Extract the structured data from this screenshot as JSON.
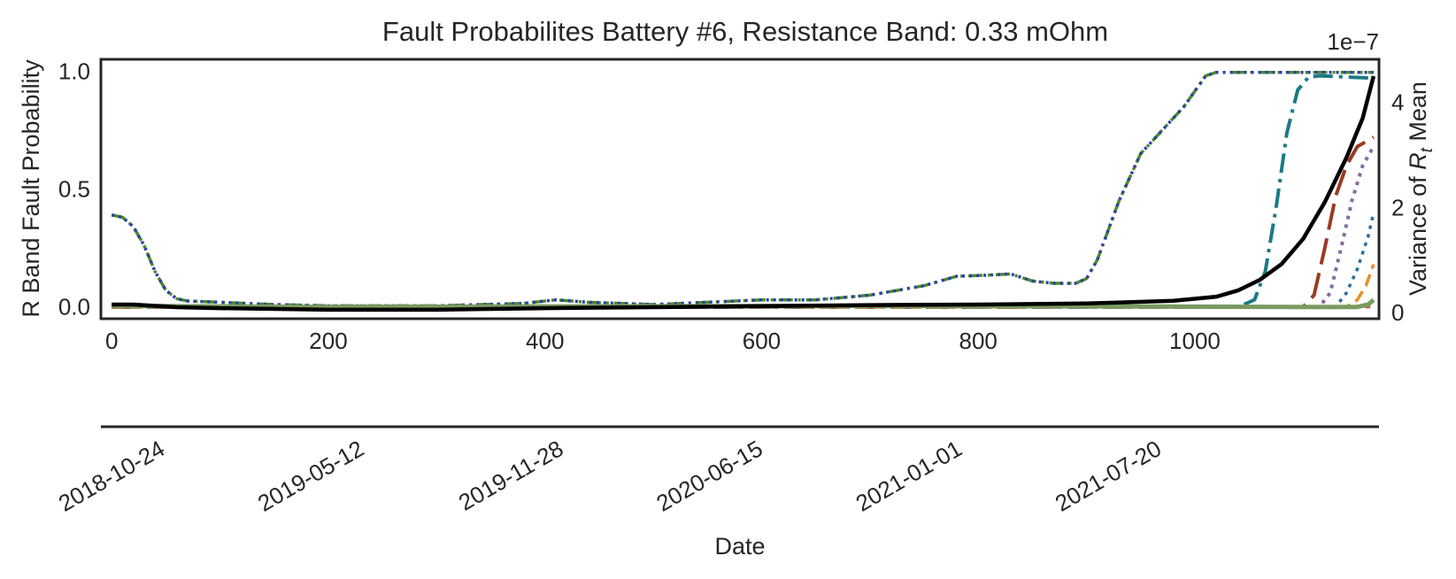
{
  "chart_data": {
    "type": "line",
    "title": "Fault Probabilites Battery #6, Resistance Band: 0.33 mOhm",
    "xlabel": "",
    "ylabel": "R Band Fault Probability",
    "y2label_prefix": "Variance of ",
    "y2label_symbol": "R",
    "y2label_subscript": "t",
    "y2label_suffix": " Mean",
    "y2_offset_text": "1e−7",
    "date_axis_label": "Date",
    "xlim": [
      -10,
      1170
    ],
    "ylim": [
      -0.05,
      1.05
    ],
    "y2lim": [
      -0.12,
      4.82
    ],
    "x_ticks": [
      0,
      200,
      400,
      600,
      800,
      1000
    ],
    "x_tick_labels": [
      "0",
      "200",
      "400",
      "600",
      "800",
      "1000"
    ],
    "y_ticks": [
      0.0,
      0.5,
      1.0
    ],
    "y_tick_labels": [
      "0.0",
      "0.5",
      "1.0"
    ],
    "y2_ticks": [
      0,
      2,
      4
    ],
    "y2_tick_labels": [
      "0",
      "2",
      "4"
    ],
    "date_ticks": [
      "2018-10-24",
      "2019-05-12",
      "2019-11-28",
      "2020-06-15",
      "2021-01-01",
      "2021-07-20"
    ],
    "grid": false,
    "legend": "none",
    "series": [
      {
        "color": "#4a8a2a",
        "dash": "16,6,3,6",
        "width": 3.5,
        "axis": "left",
        "points": [
          [
            0,
            0.39
          ],
          [
            10,
            0.38
          ],
          [
            20,
            0.34
          ],
          [
            30,
            0.26
          ],
          [
            40,
            0.15
          ],
          [
            50,
            0.07
          ],
          [
            60,
            0.035
          ],
          [
            70,
            0.025
          ],
          [
            100,
            0.02
          ],
          [
            150,
            0.01
          ],
          [
            200,
            0.005
          ],
          [
            300,
            0.005
          ],
          [
            380,
            0.015
          ],
          [
            410,
            0.03
          ],
          [
            440,
            0.02
          ],
          [
            500,
            0.01
          ],
          [
            550,
            0.02
          ],
          [
            600,
            0.03
          ],
          [
            650,
            0.03
          ],
          [
            700,
            0.05
          ],
          [
            750,
            0.09
          ],
          [
            780,
            0.13
          ],
          [
            810,
            0.135
          ],
          [
            830,
            0.14
          ],
          [
            850,
            0.11
          ],
          [
            870,
            0.1
          ],
          [
            890,
            0.1
          ],
          [
            900,
            0.12
          ],
          [
            910,
            0.2
          ],
          [
            930,
            0.45
          ],
          [
            950,
            0.65
          ],
          [
            970,
            0.75
          ],
          [
            990,
            0.85
          ],
          [
            1010,
            0.98
          ],
          [
            1020,
            0.995
          ],
          [
            1165,
            0.995
          ]
        ]
      },
      {
        "color": "#2c3ea8",
        "dash": "3,5",
        "width": 3.5,
        "axis": "left",
        "points": [
          [
            0,
            0.39
          ],
          [
            10,
            0.38
          ],
          [
            20,
            0.34
          ],
          [
            30,
            0.26
          ],
          [
            40,
            0.15
          ],
          [
            50,
            0.07
          ],
          [
            60,
            0.035
          ],
          [
            70,
            0.025
          ],
          [
            100,
            0.02
          ],
          [
            150,
            0.01
          ],
          [
            200,
            0.005
          ],
          [
            300,
            0.005
          ],
          [
            380,
            0.015
          ],
          [
            410,
            0.03
          ],
          [
            440,
            0.02
          ],
          [
            500,
            0.01
          ],
          [
            550,
            0.02
          ],
          [
            600,
            0.03
          ],
          [
            650,
            0.03
          ],
          [
            700,
            0.05
          ],
          [
            750,
            0.09
          ],
          [
            780,
            0.13
          ],
          [
            810,
            0.135
          ],
          [
            830,
            0.14
          ],
          [
            850,
            0.11
          ],
          [
            870,
            0.1
          ],
          [
            890,
            0.1
          ],
          [
            900,
            0.12
          ],
          [
            910,
            0.2
          ],
          [
            930,
            0.45
          ],
          [
            950,
            0.65
          ],
          [
            970,
            0.75
          ],
          [
            990,
            0.85
          ],
          [
            1010,
            0.98
          ],
          [
            1020,
            0.995
          ],
          [
            1165,
            0.995
          ]
        ]
      },
      {
        "color": "#1a7a86",
        "dash": "22,7,4,7",
        "width": 4,
        "axis": "left",
        "points": [
          [
            0,
            0.0
          ],
          [
            1040,
            0.0
          ],
          [
            1055,
            0.03
          ],
          [
            1065,
            0.15
          ],
          [
            1075,
            0.42
          ],
          [
            1085,
            0.74
          ],
          [
            1095,
            0.92
          ],
          [
            1105,
            0.975
          ],
          [
            1115,
            0.98
          ],
          [
            1140,
            0.975
          ],
          [
            1165,
            0.97
          ]
        ]
      },
      {
        "color": "#9a3a22",
        "dash": "30,10",
        "width": 4,
        "axis": "left",
        "points": [
          [
            0,
            0.0
          ],
          [
            1100,
            0.0
          ],
          [
            1110,
            0.05
          ],
          [
            1120,
            0.25
          ],
          [
            1130,
            0.47
          ],
          [
            1140,
            0.6
          ],
          [
            1150,
            0.68
          ],
          [
            1165,
            0.72
          ]
        ]
      },
      {
        "color": "#8a6aa0",
        "dash": "4,6",
        "width": 4,
        "axis": "left",
        "points": [
          [
            0,
            0.0
          ],
          [
            1115,
            0.0
          ],
          [
            1125,
            0.06
          ],
          [
            1135,
            0.25
          ],
          [
            1145,
            0.45
          ],
          [
            1155,
            0.6
          ],
          [
            1165,
            0.68
          ]
        ]
      },
      {
        "color": "#2a6ea0",
        "dash": "4,6",
        "width": 3.5,
        "axis": "left",
        "points": [
          [
            0,
            0.0
          ],
          [
            1130,
            0.0
          ],
          [
            1140,
            0.06
          ],
          [
            1150,
            0.16
          ],
          [
            1160,
            0.3
          ],
          [
            1165,
            0.4
          ]
        ]
      },
      {
        "color": "#e8902a",
        "dash": "14,7",
        "width": 3.5,
        "axis": "left",
        "points": [
          [
            0,
            0.0
          ],
          [
            1140,
            0.0
          ],
          [
            1150,
            0.03
          ],
          [
            1158,
            0.09
          ],
          [
            1165,
            0.18
          ]
        ]
      },
      {
        "color": "#c94f3a",
        "dash": "6,6",
        "width": 3,
        "axis": "left",
        "points": [
          [
            0,
            0.0
          ],
          [
            600,
            0.004
          ],
          [
            1165,
            0.0
          ]
        ]
      },
      {
        "color": "#7a9a60",
        "dash": "",
        "width": 5,
        "axis": "left",
        "points": [
          [
            0,
            0.005
          ],
          [
            200,
            0.0
          ],
          [
            700,
            0.005
          ],
          [
            1100,
            0.0
          ],
          [
            1150,
            0.0
          ],
          [
            1160,
            0.01
          ],
          [
            1165,
            0.03
          ]
        ]
      },
      {
        "color": "#000000",
        "dash": "",
        "width": 4.5,
        "axis": "right",
        "points": [
          [
            0,
            0.15
          ],
          [
            20,
            0.15
          ],
          [
            60,
            0.1
          ],
          [
            100,
            0.08
          ],
          [
            200,
            0.05
          ],
          [
            300,
            0.05
          ],
          [
            400,
            0.08
          ],
          [
            600,
            0.12
          ],
          [
            700,
            0.14
          ],
          [
            800,
            0.15
          ],
          [
            900,
            0.17
          ],
          [
            980,
            0.22
          ],
          [
            1020,
            0.3
          ],
          [
            1040,
            0.42
          ],
          [
            1060,
            0.62
          ],
          [
            1080,
            0.92
          ],
          [
            1100,
            1.4
          ],
          [
            1120,
            2.1
          ],
          [
            1140,
            2.95
          ],
          [
            1155,
            3.7
          ],
          [
            1165,
            4.5
          ]
        ]
      }
    ]
  }
}
